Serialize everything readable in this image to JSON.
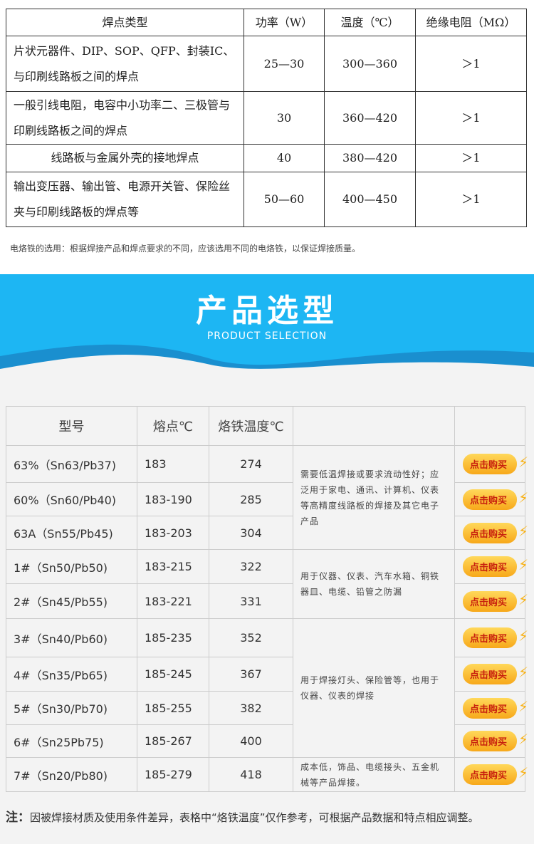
{
  "spec_table": {
    "headers": [
      "焊点类型",
      "功率（W）",
      "温度（℃）",
      "绝缘电阻（MΩ）"
    ],
    "rows": [
      [
        "片状元器件、DIP、SOP、QFP、封装IC、与印刷线路板之间的焊点",
        "25—30",
        "300—360",
        "＞1"
      ],
      [
        "一般引线电阻，电容中小功率二、三极管与印刷线路板之间的焊点",
        "30",
        "360—420",
        "＞1"
      ],
      [
        "线路板与金属外壳的接地焊点",
        "40",
        "380—420",
        "＞1"
      ],
      [
        "输出变压器、输出管、电源开关管、保险丝夹与印刷线路板的焊点等",
        "50—60",
        "400—450",
        "＞1"
      ]
    ]
  },
  "spec_note": "电烙铁的选用：根据焊接产品和焊点要求的不同，应该选用不同的电烙铁，以保证焊接质量。",
  "banner": {
    "title": "产品选型",
    "subtitle": "PRODUCT SELECTION",
    "color": "#1db6f3"
  },
  "product_table": {
    "headers": [
      "型号",
      "熔点℃",
      "烙铁温度℃",
      "",
      ""
    ],
    "rows": [
      [
        "63%（Sn63/Pb37)",
        "183",
        "274"
      ],
      [
        "60%（Sn60/Pb40)",
        "183-190",
        "285"
      ],
      [
        "63A（Sn55/Pb45)",
        "183-203",
        "304"
      ],
      [
        "1#（Sn50/Pb50)",
        "183-215",
        "322"
      ],
      [
        "2#（Sn45/Pb55)",
        "183-221",
        "331"
      ],
      [
        "3#（Sn40/Pb60)",
        "185-235",
        "352"
      ],
      [
        "4#（Sn35/Pb65)",
        "185-245",
        "367"
      ],
      [
        "5#（Sn30/Pb70)",
        "185-255",
        "382"
      ],
      [
        "6#（Sn25Pb75)",
        "185-267",
        "400"
      ],
      [
        "7#（Sn20/Pb80)",
        "185-279",
        "418"
      ]
    ],
    "descriptions": [
      "需要低温焊接或要求流动性好；应泛用于家电、通讯、计算机、仪表等高精度线路板的焊接及其它电子产品",
      "用于仪器、仪表、汽车水箱、铜铁器皿、电缆、铅管之防漏",
      "用于焊接灯头、保险管等，也用于仪器、仪表的焊接",
      "成本低，饰品、电缆接头、五金机械等产品焊接。"
    ],
    "buy_label": "点击购买"
  },
  "footer": {
    "label": "注：",
    "text": "因被焊接材质及使用条件差异，表格中“烙铁温度”仅作参考，可根据产品数据和特点相应调整。"
  }
}
